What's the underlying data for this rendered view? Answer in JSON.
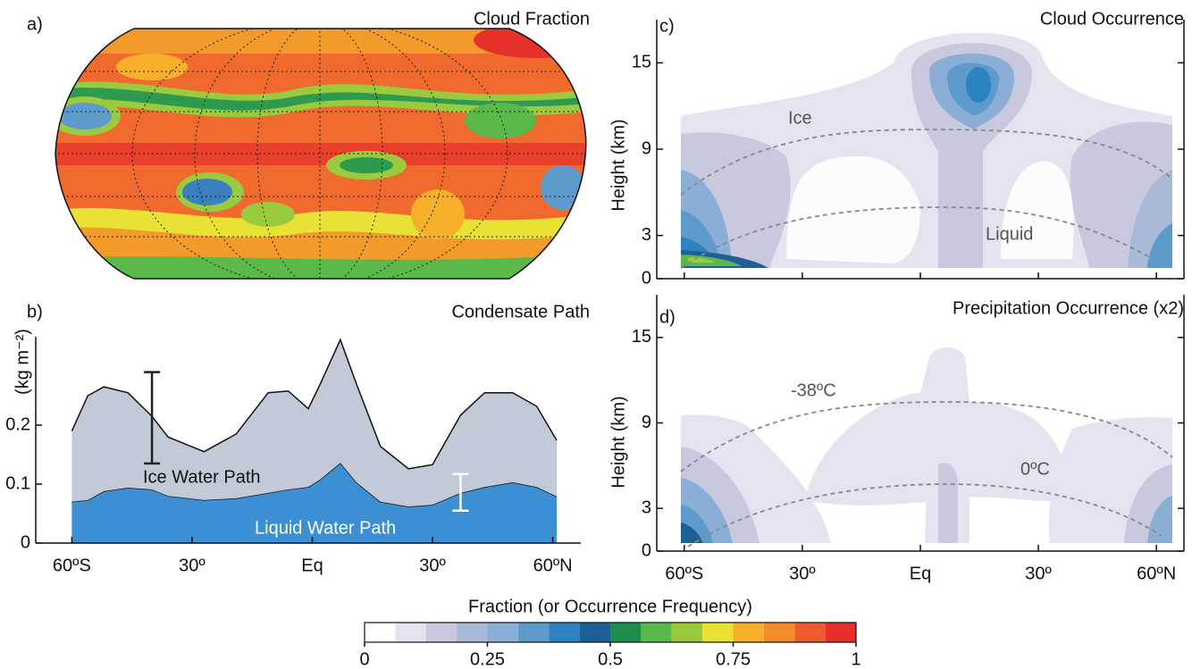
{
  "chart_data": [
    {
      "type": "map",
      "label": "a)",
      "title": "Cloud Fraction"
    },
    {
      "type": "area",
      "label": "b)",
      "title": "Condensate Path",
      "ylabel": "(kg m⁻²)",
      "x": [
        -60,
        -56,
        -52,
        -46,
        -40,
        -36,
        -27,
        -19,
        -11,
        -6,
        -1,
        2,
        7,
        11,
        17,
        24,
        30,
        37,
        43,
        50,
        56,
        61
      ],
      "series": [
        {
          "name": "Liquid Water Path",
          "color": "#3d8fd3",
          "values": [
            0.07,
            0.073,
            0.088,
            0.094,
            0.091,
            0.08,
            0.073,
            0.076,
            0.085,
            0.091,
            0.095,
            0.108,
            0.136,
            0.103,
            0.07,
            0.062,
            0.065,
            0.085,
            0.095,
            0.103,
            0.095,
            0.079
          ]
        },
        {
          "name": "Ice Water Path",
          "color": "#c2c9d7",
          "values": [
            0.12,
            0.177,
            0.177,
            0.161,
            0.124,
            0.1,
            0.082,
            0.109,
            0.17,
            0.167,
            0.133,
            0.162,
            0.209,
            0.167,
            0.094,
            0.064,
            0.068,
            0.132,
            0.16,
            0.152,
            0.137,
            0.095
          ]
        }
      ],
      "error_bars": [
        {
          "x": -40,
          "value": 0.2125,
          "error": 0.0775,
          "color": "#222222"
        },
        {
          "x": 37,
          "value": 0.086,
          "error": 0.031,
          "color": "#ffffff"
        }
      ],
      "xlim": [
        -69,
        67
      ],
      "ylim": [
        0,
        0.35
      ],
      "xticks": [
        {
          "value": -60,
          "label": "60ºS"
        },
        {
          "value": -30,
          "label": "30º"
        },
        {
          "value": 0,
          "label": "Eq"
        },
        {
          "value": 30,
          "label": "30º"
        },
        {
          "value": 60,
          "label": "60ºN"
        }
      ],
      "yticks": [
        0,
        0.1,
        0.2
      ]
    },
    {
      "type": "contour",
      "label": "c)",
      "title": "Cloud Occurrence",
      "ylabel": "Height (km)",
      "annotations": [
        "Ice",
        "Liquid"
      ],
      "xlim": [
        -67,
        67
      ],
      "ylim": [
        0,
        18
      ],
      "xticks": [
        -60,
        -30,
        0,
        30,
        60
      ],
      "yticks": [
        0,
        3,
        9,
        15
      ]
    },
    {
      "type": "contour",
      "label": "d)",
      "title": "Precipitation Occurrence (x2)",
      "ylabel": "Height (km)",
      "annotations": [
        "-38ºC",
        "0ºC"
      ],
      "xlim": [
        -67,
        67
      ],
      "ylim": [
        0,
        18
      ],
      "xticks": [
        {
          "value": -60,
          "label": "60ºS"
        },
        {
          "value": -30,
          "label": "30º"
        },
        {
          "value": 0,
          "label": "Eq"
        },
        {
          "value": 30,
          "label": "30º"
        },
        {
          "value": 60,
          "label": "60ºN"
        }
      ],
      "yticks": [
        0,
        3,
        9,
        15
      ]
    },
    {
      "type": "colorbar",
      "title": "Fraction (or Occurrence Frequency)",
      "colors": [
        "#ffffff",
        "#e6e3f0",
        "#c8c9df",
        "#a9bad8",
        "#8aaed6",
        "#5e9bcd",
        "#2d82c0",
        "#1e5f96",
        "#1d8d4d",
        "#5bb94a",
        "#9acb3e",
        "#e9e234",
        "#f6b02a",
        "#f28b2a",
        "#ee5a2c",
        "#e62f2a"
      ],
      "xlim": [
        0,
        1
      ],
      "xticks": [
        0,
        0.25,
        0.5,
        0.75,
        1
      ]
    }
  ]
}
